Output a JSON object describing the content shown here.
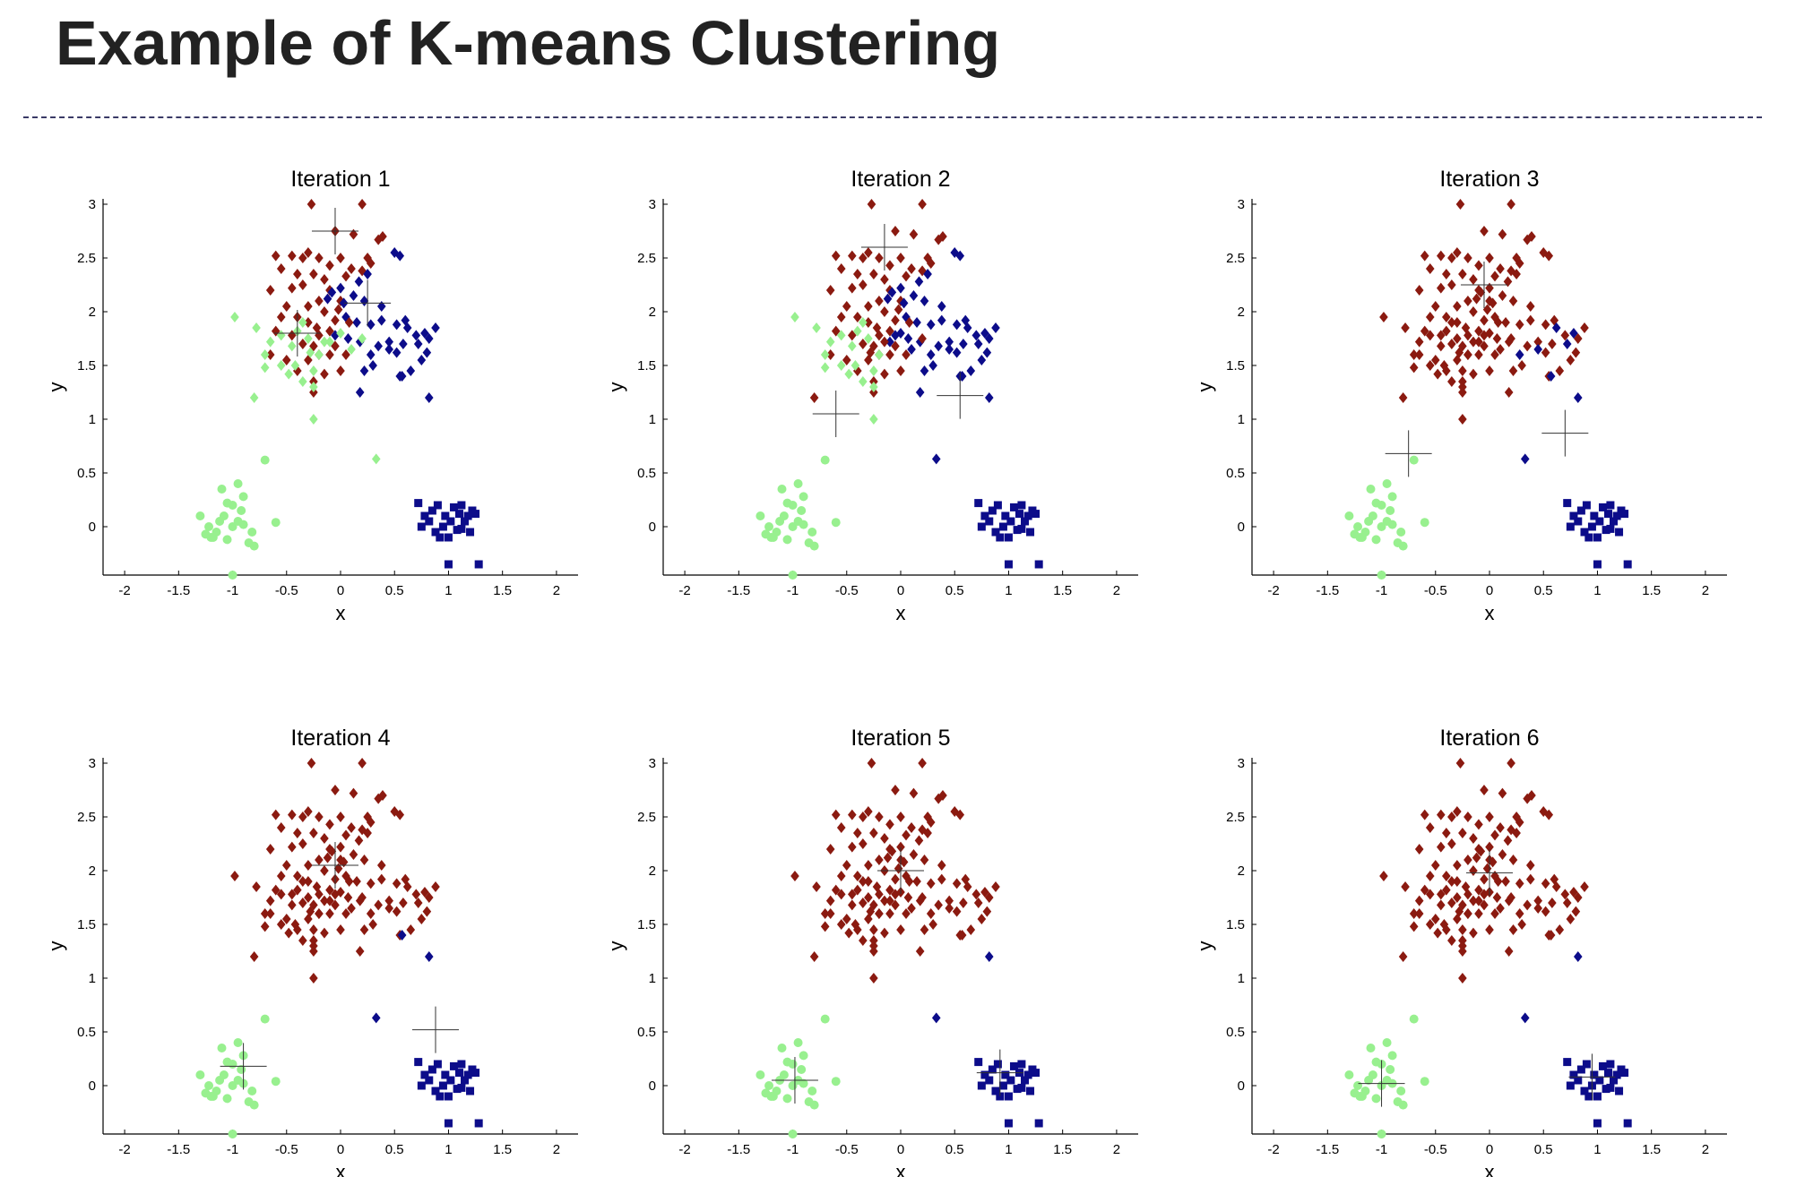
{
  "page": {
    "title": "Example of K-means Clustering"
  },
  "colors": {
    "cluster_1": "#8b1a10",
    "cluster_2": "#98f08f",
    "cluster_3": "#0c0c8a",
    "centroid": "#333333"
  },
  "chart_data": {
    "type": "scatter",
    "panel_titles": [
      "Iteration 1",
      "Iteration 2",
      "Iteration 3",
      "Iteration 4",
      "Iteration 5",
      "Iteration 6"
    ],
    "xlabel": "x",
    "ylabel": "y",
    "xlim": [
      -2.2,
      2.2
    ],
    "ylim": [
      -0.45,
      3.05
    ],
    "xticks": [
      -2,
      -1.5,
      -1,
      -0.5,
      0,
      0.5,
      1,
      1.5,
      2
    ],
    "xtick_labels": [
      "-2",
      "-1.5",
      "-1",
      "-0.5",
      "0",
      "0.5",
      "1",
      "1.5",
      "2"
    ],
    "yticks": [
      0,
      0.5,
      1,
      1.5,
      2,
      2.5,
      3
    ],
    "ytick_labels": [
      "0",
      "0.5",
      "1",
      "1.5",
      "2",
      "2.5",
      "3"
    ],
    "groups": {
      "A": [
        [
          -0.27,
          3.0
        ],
        [
          0.2,
          3.0
        ],
        [
          -0.05,
          2.75
        ],
        [
          0.12,
          2.72
        ],
        [
          0.35,
          2.67
        ],
        [
          0.39,
          2.7
        ],
        [
          -0.6,
          2.52
        ],
        [
          -0.45,
          2.52
        ],
        [
          -0.35,
          2.5
        ],
        [
          -0.3,
          2.55
        ],
        [
          -0.2,
          2.5
        ],
        [
          -0.1,
          2.43
        ],
        [
          0.0,
          2.5
        ],
        [
          0.1,
          2.4
        ],
        [
          0.25,
          2.5
        ],
        [
          0.28,
          2.45
        ],
        [
          -0.55,
          2.4
        ],
        [
          -0.4,
          2.35
        ],
        [
          -0.25,
          2.35
        ],
        [
          -0.15,
          2.3
        ],
        [
          0.05,
          2.33
        ],
        [
          0.2,
          2.38
        ],
        [
          -0.65,
          2.2
        ],
        [
          -0.45,
          2.22
        ],
        [
          -0.35,
          2.25
        ],
        [
          -0.1,
          2.2
        ],
        [
          0.0,
          2.1
        ],
        [
          -0.5,
          2.05
        ],
        [
          -0.3,
          2.05
        ],
        [
          -0.2,
          2.1
        ],
        [
          -0.55,
          1.95
        ],
        [
          -0.4,
          1.95
        ],
        [
          -0.3,
          1.9
        ],
        [
          -0.6,
          1.82
        ],
        [
          -0.45,
          1.78
        ],
        [
          -0.35,
          1.7
        ],
        [
          -0.25,
          1.68
        ],
        [
          -0.2,
          1.78
        ],
        [
          -0.1,
          1.82
        ],
        [
          -0.65,
          1.6
        ],
        [
          -0.5,
          1.55
        ],
        [
          -0.4,
          1.45
        ],
        [
          -0.3,
          1.55
        ],
        [
          -0.2,
          1.6
        ],
        [
          -0.1,
          1.6
        ],
        [
          0.05,
          1.6
        ],
        [
          -0.25,
          1.35
        ],
        [
          -0.15,
          1.42
        ],
        [
          0.0,
          1.45
        ],
        [
          -0.25,
          1.25
        ],
        [
          -0.02,
          2.02
        ],
        [
          -0.15,
          2.0
        ],
        [
          -0.05,
          1.92
        ]
      ],
      "B": [
        [
          -0.98,
          1.95
        ],
        [
          -0.78,
          1.85
        ],
        [
          -0.65,
          1.72
        ],
        [
          -0.7,
          1.6
        ],
        [
          -0.7,
          1.48
        ],
        [
          -0.55,
          1.5
        ],
        [
          -0.48,
          1.42
        ],
        [
          -0.42,
          1.5
        ],
        [
          -0.35,
          1.35
        ],
        [
          -0.25,
          1.45
        ],
        [
          -0.2,
          1.6
        ],
        [
          -0.25,
          1.3
        ],
        [
          -0.3,
          1.75
        ],
        [
          -0.45,
          1.68
        ],
        [
          -0.55,
          1.78
        ],
        [
          -0.4,
          1.82
        ],
        [
          -0.25,
          1.0
        ],
        [
          -0.35,
          1.9
        ]
      ],
      "C": [
        [
          -0.08,
          2.18
        ],
        [
          0.0,
          2.22
        ],
        [
          0.12,
          2.15
        ],
        [
          0.22,
          2.1
        ],
        [
          -0.12,
          2.12
        ],
        [
          0.03,
          2.08
        ],
        [
          0.17,
          2.28
        ],
        [
          0.25,
          2.35
        ],
        [
          0.05,
          1.95
        ],
        [
          0.15,
          1.9
        ],
        [
          0.28,
          1.88
        ],
        [
          0.38,
          1.92
        ],
        [
          -0.05,
          1.78
        ],
        [
          0.07,
          1.75
        ],
        [
          0.18,
          1.72
        ],
        [
          0.35,
          1.68
        ],
        [
          0.45,
          1.72
        ],
        [
          0.58,
          1.7
        ],
        [
          0.52,
          1.62
        ],
        [
          0.3,
          1.5
        ],
        [
          0.22,
          1.45
        ],
        [
          0.6,
          1.92
        ],
        [
          0.7,
          1.78
        ],
        [
          0.75,
          1.55
        ],
        [
          0.82,
          1.75
        ],
        [
          0.88,
          1.85
        ],
        [
          0.8,
          1.62
        ],
        [
          0.65,
          1.45
        ],
        [
          0.18,
          1.25
        ],
        [
          0.55,
          1.4
        ],
        [
          0.38,
          2.05
        ],
        [
          0.52,
          1.88
        ],
        [
          0.5,
          2.55
        ],
        [
          0.55,
          2.52
        ]
      ],
      "G": [
        [
          -0.8,
          1.2
        ]
      ],
      "H": [
        [
          0.1,
          1.65
        ],
        [
          0.0,
          1.8
        ],
        [
          -0.1,
          1.72
        ]
      ],
      "O": [
        [
          0.33,
          0.63
        ]
      ],
      "E": [
        [
          0.57,
          1.4
        ]
      ],
      "I": [
        [
          0.82,
          1.2
        ]
      ],
      "J": [
        [
          -0.22,
          1.85
        ],
        [
          -0.05,
          1.68
        ],
        [
          0.08,
          1.9
        ]
      ],
      "K": [
        [
          0.28,
          1.6
        ],
        [
          0.45,
          1.65
        ],
        [
          0.62,
          1.85
        ],
        [
          0.72,
          1.7
        ],
        [
          0.78,
          1.8
        ]
      ],
      "L": [
        [
          -0.15,
          1.72
        ],
        [
          0.2,
          1.75
        ],
        [
          -0.28,
          1.62
        ]
      ],
      "D": [
        [
          -1.3,
          0.1
        ],
        [
          -1.22,
          0.0
        ],
        [
          -1.2,
          -0.1
        ],
        [
          -1.15,
          -0.05
        ],
        [
          -1.12,
          0.05
        ],
        [
          -1.08,
          0.1
        ],
        [
          -1.05,
          -0.12
        ],
        [
          -1.0,
          0.0
        ],
        [
          -0.95,
          0.05
        ],
        [
          -0.9,
          0.02
        ],
        [
          -0.85,
          -0.15
        ],
        [
          -0.82,
          -0.05
        ],
        [
          -1.0,
          0.2
        ],
        [
          -1.05,
          0.22
        ],
        [
          -1.1,
          0.35
        ],
        [
          -0.95,
          0.4
        ],
        [
          -0.9,
          0.28
        ],
        [
          -0.6,
          0.04
        ],
        [
          -0.7,
          0.62
        ],
        [
          -1.0,
          -0.45
        ],
        [
          -1.18,
          -0.1
        ],
        [
          -0.8,
          -0.18
        ],
        [
          -0.92,
          0.15
        ],
        [
          -1.25,
          -0.07
        ]
      ],
      "F": [
        [
          0.72,
          0.22
        ],
        [
          0.78,
          0.1
        ],
        [
          0.82,
          0.05
        ],
        [
          0.85,
          0.15
        ],
        [
          0.88,
          -0.05
        ],
        [
          0.9,
          0.2
        ],
        [
          0.95,
          0.0
        ],
        [
          0.97,
          0.1
        ],
        [
          1.0,
          -0.1
        ],
        [
          1.02,
          0.05
        ],
        [
          1.05,
          0.18
        ],
        [
          1.08,
          -0.03
        ],
        [
          1.1,
          0.12
        ],
        [
          1.12,
          0.2
        ],
        [
          1.15,
          0.05
        ],
        [
          1.18,
          0.1
        ],
        [
          1.2,
          -0.05
        ],
        [
          1.22,
          0.15
        ],
        [
          1.25,
          0.12
        ],
        [
          0.75,
          0.0
        ],
        [
          1.0,
          -0.35
        ],
        [
          1.28,
          -0.35
        ],
        [
          0.92,
          -0.1
        ],
        [
          1.12,
          -0.02
        ]
      ]
    },
    "group_markers": {
      "D": "circle",
      "F": "square",
      "A": "diamond",
      "B": "diamond",
      "C": "diamond",
      "E": "diamond",
      "G": "diamond",
      "H": "diamond",
      "I": "diamond",
      "J": "diamond",
      "K": "diamond",
      "L": "diamond",
      "O": "diamond"
    },
    "iterations": [
      {
        "assignment": {
          "A": 1,
          "B": 2,
          "C": 3,
          "D": 2,
          "E": 3,
          "F": 3,
          "G": 2,
          "H": 2,
          "I": 3,
          "J": 1,
          "K": 3,
          "L": 2,
          "O": 2
        },
        "centroids": [
          [
            -0.4,
            1.8
          ],
          [
            -0.05,
            2.75
          ],
          [
            0.25,
            2.08
          ]
        ]
      },
      {
        "assignment": {
          "A": 1,
          "B": 2,
          "C": 3,
          "D": 2,
          "E": 3,
          "F": 3,
          "G": 1,
          "H": 3,
          "I": 3,
          "J": 1,
          "K": 3,
          "L": 1,
          "O": 3
        },
        "centroids": [
          [
            -0.6,
            1.05
          ],
          [
            -0.15,
            2.6
          ],
          [
            0.55,
            1.22
          ]
        ]
      },
      {
        "assignment": {
          "A": 1,
          "B": 1,
          "C": 1,
          "D": 2,
          "E": 3,
          "F": 3,
          "G": 1,
          "H": 1,
          "I": 3,
          "J": 1,
          "K": 3,
          "L": 1,
          "O": 3
        },
        "centroids": [
          [
            -0.75,
            0.68
          ],
          [
            -0.05,
            2.25
          ],
          [
            0.7,
            0.87
          ]
        ]
      },
      {
        "assignment": {
          "A": 1,
          "B": 1,
          "C": 1,
          "D": 2,
          "E": 3,
          "F": 3,
          "G": 1,
          "H": 1,
          "I": 3,
          "J": 1,
          "K": 1,
          "L": 1,
          "O": 3
        },
        "centroids": [
          [
            -0.9,
            0.18
          ],
          [
            -0.05,
            2.05
          ],
          [
            0.88,
            0.52
          ]
        ]
      },
      {
        "assignment": {
          "A": 1,
          "B": 1,
          "C": 1,
          "D": 2,
          "E": 1,
          "F": 3,
          "G": 1,
          "H": 1,
          "I": 3,
          "J": 1,
          "K": 1,
          "L": 1,
          "O": 3
        },
        "centroids": [
          [
            -0.98,
            0.05
          ],
          [
            0.0,
            2.0
          ],
          [
            0.92,
            0.12
          ]
        ]
      },
      {
        "assignment": {
          "A": 1,
          "B": 1,
          "C": 1,
          "D": 2,
          "E": 1,
          "F": 3,
          "G": 1,
          "H": 1,
          "I": 3,
          "J": 1,
          "K": 1,
          "L": 1,
          "O": 3
        },
        "centroids": [
          [
            -1.0,
            0.02
          ],
          [
            0.0,
            1.98
          ],
          [
            0.95,
            0.08
          ]
        ]
      }
    ]
  }
}
